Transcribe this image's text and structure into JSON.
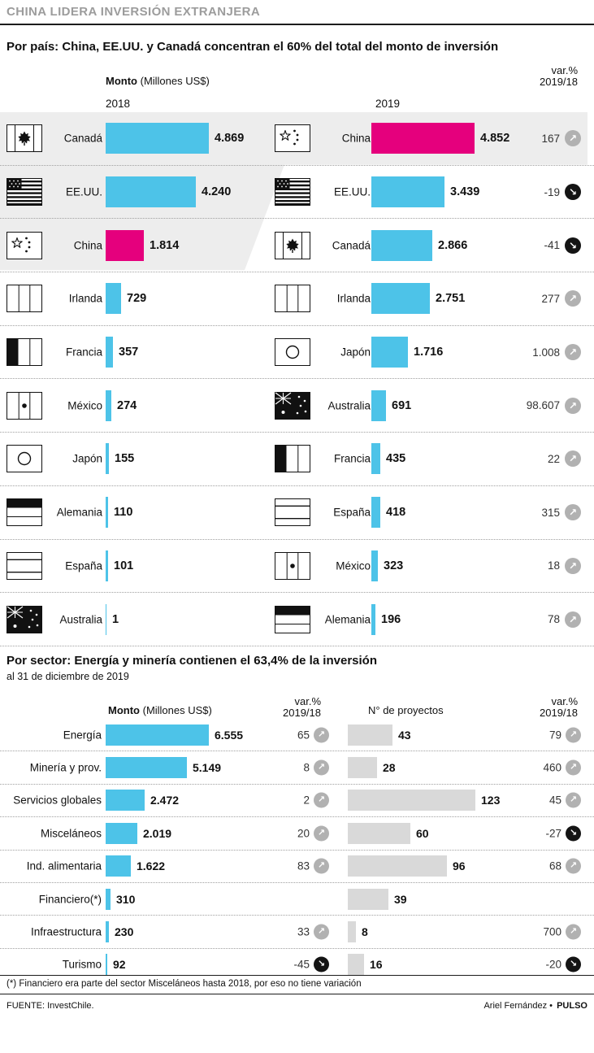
{
  "title": "CHINA LIDERA INVERSIÓN EXTRANJERA",
  "labels": {
    "monto_label": "Monto",
    "monto_units": "(Millones US$)",
    "var_label": "var.%",
    "var_period": "2019/18"
  },
  "colors": {
    "accent_blue": "#4dc3e8",
    "accent_pink": "#e5007d",
    "bar_gray": "#d9d9d9",
    "trend_up_bg": "#b1b1b1",
    "trend_down_bg": "#141414",
    "title_gray": "#9c9c9c",
    "highlight_gray": "#ededed"
  },
  "country": {
    "heading": "Por país: China, EE.UU. y Canadá concentran el 60% del total del monto de inversión",
    "year_left": "2018",
    "year_right": "2019",
    "rows": [
      {
        "left": {
          "flag": "canada",
          "name": "Canadá",
          "value": 4869,
          "display": "4.869",
          "color": "blue"
        },
        "right": {
          "flag": "china",
          "name": "China",
          "value": 4852,
          "display": "4.852",
          "color": "pink"
        },
        "var": {
          "display": "167",
          "trend": "up"
        }
      },
      {
        "left": {
          "flag": "usa",
          "name": "EE.UU.",
          "value": 4240,
          "display": "4.240",
          "color": "blue"
        },
        "right": {
          "flag": "usa",
          "name": "EE.UU.",
          "value": 3439,
          "display": "3.439",
          "color": "blue"
        },
        "var": {
          "display": "-19",
          "trend": "down"
        }
      },
      {
        "left": {
          "flag": "china",
          "name": "China",
          "value": 1814,
          "display": "1.814",
          "color": "pink"
        },
        "right": {
          "flag": "canada",
          "name": "Canadá",
          "value": 2866,
          "display": "2.866",
          "color": "blue"
        },
        "var": {
          "display": "-41",
          "trend": "down"
        }
      },
      {
        "left": {
          "flag": "ireland",
          "name": "Irlanda",
          "value": 729,
          "display": "729",
          "color": "blue"
        },
        "right": {
          "flag": "ireland",
          "name": "Irlanda",
          "value": 2751,
          "display": "2.751",
          "color": "blue"
        },
        "var": {
          "display": "277",
          "trend": "up"
        }
      },
      {
        "left": {
          "flag": "france",
          "name": "Francia",
          "value": 357,
          "display": "357",
          "color": "blue"
        },
        "right": {
          "flag": "japan",
          "name": "Japón",
          "value": 1716,
          "display": "1.716",
          "color": "blue"
        },
        "var": {
          "display": "1.008",
          "trend": "up"
        }
      },
      {
        "left": {
          "flag": "mexico",
          "name": "México",
          "value": 274,
          "display": "274",
          "color": "blue"
        },
        "right": {
          "flag": "australia",
          "name": "Australia",
          "value": 691,
          "display": "691",
          "color": "blue"
        },
        "var": {
          "display": "98.607",
          "trend": "up"
        }
      },
      {
        "left": {
          "flag": "japan",
          "name": "Japón",
          "value": 155,
          "display": "155",
          "color": "blue"
        },
        "right": {
          "flag": "france",
          "name": "Francia",
          "value": 435,
          "display": "435",
          "color": "blue"
        },
        "var": {
          "display": "22",
          "trend": "up"
        }
      },
      {
        "left": {
          "flag": "germany",
          "name": "Alemania",
          "value": 110,
          "display": "110",
          "color": "blue"
        },
        "right": {
          "flag": "spain",
          "name": "España",
          "value": 418,
          "display": "418",
          "color": "blue"
        },
        "var": {
          "display": "315",
          "trend": "up"
        }
      },
      {
        "left": {
          "flag": "spain",
          "name": "España",
          "value": 101,
          "display": "101",
          "color": "blue"
        },
        "right": {
          "flag": "mexico",
          "name": "México",
          "value": 323,
          "display": "323",
          "color": "blue"
        },
        "var": {
          "display": "18",
          "trend": "up"
        }
      },
      {
        "left": {
          "flag": "australia",
          "name": "Australia",
          "value": 1,
          "display": "1",
          "color": "blue"
        },
        "right": {
          "flag": "germany",
          "name": "Alemania",
          "value": 196,
          "display": "196",
          "color": "blue"
        },
        "var": {
          "display": "78",
          "trend": "up"
        }
      }
    ]
  },
  "sector": {
    "heading": "Por sector: Energía y minería contienen el 63,4% de la inversión",
    "subtitle": "al 31 de diciembre de 2019",
    "projects_label": "N° de proyectos",
    "rows": [
      {
        "name": "Energía",
        "value": 6555,
        "display": "6.555",
        "var1": {
          "display": "65",
          "trend": "up"
        },
        "projects": 43,
        "projects_display": "43",
        "var2": {
          "display": "79",
          "trend": "up"
        }
      },
      {
        "name": "Minería y prov.",
        "value": 5149,
        "display": "5.149",
        "var1": {
          "display": "8",
          "trend": "up"
        },
        "projects": 28,
        "projects_display": "28",
        "var2": {
          "display": "460",
          "trend": "up"
        }
      },
      {
        "name": "Servicios globales",
        "value": 2472,
        "display": "2.472",
        "var1": {
          "display": "2",
          "trend": "up"
        },
        "projects": 123,
        "projects_display": "123",
        "var2": {
          "display": "45",
          "trend": "up"
        }
      },
      {
        "name": "Misceláneos",
        "value": 2019,
        "display": "2.019",
        "var1": {
          "display": "20",
          "trend": "up"
        },
        "projects": 60,
        "projects_display": "60",
        "var2": {
          "display": "-27",
          "trend": "down"
        }
      },
      {
        "name": "Ind. alimentaria",
        "value": 1622,
        "display": "1.622",
        "var1": {
          "display": "83",
          "trend": "up"
        },
        "projects": 96,
        "projects_display": "96",
        "var2": {
          "display": "68",
          "trend": "up"
        }
      },
      {
        "name": "Financiero(*)",
        "value": 310,
        "display": "310",
        "var1": {
          "display": null,
          "trend": null
        },
        "projects": 39,
        "projects_display": "39",
        "var2": {
          "display": null,
          "trend": null
        }
      },
      {
        "name": "Infraestructura",
        "value": 230,
        "display": "230",
        "var1": {
          "display": "33",
          "trend": "up"
        },
        "projects": 8,
        "projects_display": "8",
        "var2": {
          "display": "700",
          "trend": "up"
        }
      },
      {
        "name": "Turismo",
        "value": 92,
        "display": "92",
        "var1": {
          "display": "-45",
          "trend": "down"
        },
        "projects": 16,
        "projects_display": "16",
        "var2": {
          "display": "-20",
          "trend": "down"
        }
      }
    ]
  },
  "footnote": "(*) Financiero era parte del sector Misceláneos hasta 2018, por eso no tiene variación",
  "footer": {
    "source": "FUENTE: InvestChile.",
    "author": "Ariel Fernández",
    "bullet": "•",
    "brand": "PULSO"
  },
  "chart_data": [
    {
      "type": "bar",
      "title": "Monto de inversión extranjera por país 2018 (Millones US$)",
      "categories": [
        "Canadá",
        "EE.UU.",
        "China",
        "Irlanda",
        "Francia",
        "México",
        "Japón",
        "Alemania",
        "España",
        "Australia"
      ],
      "values": [
        4869,
        4240,
        1814,
        729,
        357,
        274,
        155,
        110,
        101,
        1
      ],
      "highlight_category": "China",
      "orientation": "horizontal",
      "xlabel": "Monto (Millones US$)",
      "ylabel": "",
      "grid": false,
      "legend": "none"
    },
    {
      "type": "bar",
      "title": "Monto de inversión extranjera por país 2019 (Millones US$)",
      "categories": [
        "China",
        "EE.UU.",
        "Canadá",
        "Irlanda",
        "Japón",
        "Australia",
        "Francia",
        "España",
        "México",
        "Alemania"
      ],
      "values": [
        4852,
        3439,
        2866,
        2751,
        1716,
        691,
        435,
        418,
        323,
        196
      ],
      "var_pct_2019_18": [
        167,
        -19,
        -41,
        277,
        1008,
        98607,
        22,
        315,
        18,
        78
      ],
      "highlight_category": "China",
      "orientation": "horizontal",
      "xlabel": "Monto (Millones US$)",
      "ylabel": "",
      "grid": false,
      "legend": "none"
    },
    {
      "type": "bar",
      "title": "Inversión por sector al 31 de diciembre de 2019",
      "categories": [
        "Energía",
        "Minería y prov.",
        "Servicios globales",
        "Misceláneos",
        "Ind. alimentaria",
        "Financiero(*)",
        "Infraestructura",
        "Turismo"
      ],
      "series": [
        {
          "name": "Monto (Millones US$)",
          "values": [
            6555,
            5149,
            2472,
            2019,
            1622,
            310,
            230,
            92
          ]
        },
        {
          "name": "var.% 2019/18 monto",
          "values": [
            65,
            8,
            2,
            20,
            83,
            null,
            33,
            -45
          ]
        },
        {
          "name": "N° de proyectos",
          "values": [
            43,
            28,
            123,
            60,
            96,
            39,
            8,
            16
          ]
        },
        {
          "name": "var.% 2019/18 proyectos",
          "values": [
            79,
            460,
            45,
            -27,
            68,
            null,
            700,
            -20
          ]
        }
      ],
      "orientation": "horizontal",
      "grid": false,
      "legend": "none"
    }
  ]
}
